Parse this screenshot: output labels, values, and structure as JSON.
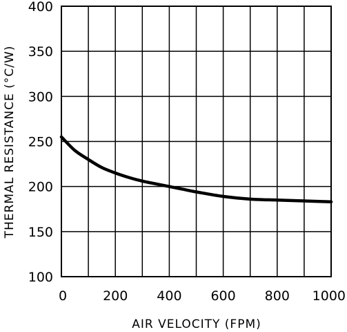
{
  "chart_data": {
    "type": "line",
    "title": "",
    "xlabel": "AIR VELOCITY (FPM)",
    "ylabel": "THERMAL RESISTANCE (°C/W)",
    "xlim": [
      0,
      1000
    ],
    "ylim": [
      100,
      400
    ],
    "x_ticks": [
      "0",
      "200",
      "400",
      "600",
      "800",
      "1000"
    ],
    "y_ticks": [
      "100",
      "150",
      "200",
      "250",
      "300",
      "350",
      "400"
    ],
    "grid": true,
    "series": [
      {
        "color": "#000000",
        "x": [
          0,
          50,
          100,
          150,
          200,
          250,
          300,
          350,
          400,
          450,
          500,
          600,
          700,
          800,
          900,
          1000
        ],
        "y": [
          255,
          240,
          230,
          221,
          215,
          210,
          206,
          203,
          200,
          197,
          194,
          189,
          186,
          185,
          184,
          183
        ]
      }
    ]
  }
}
